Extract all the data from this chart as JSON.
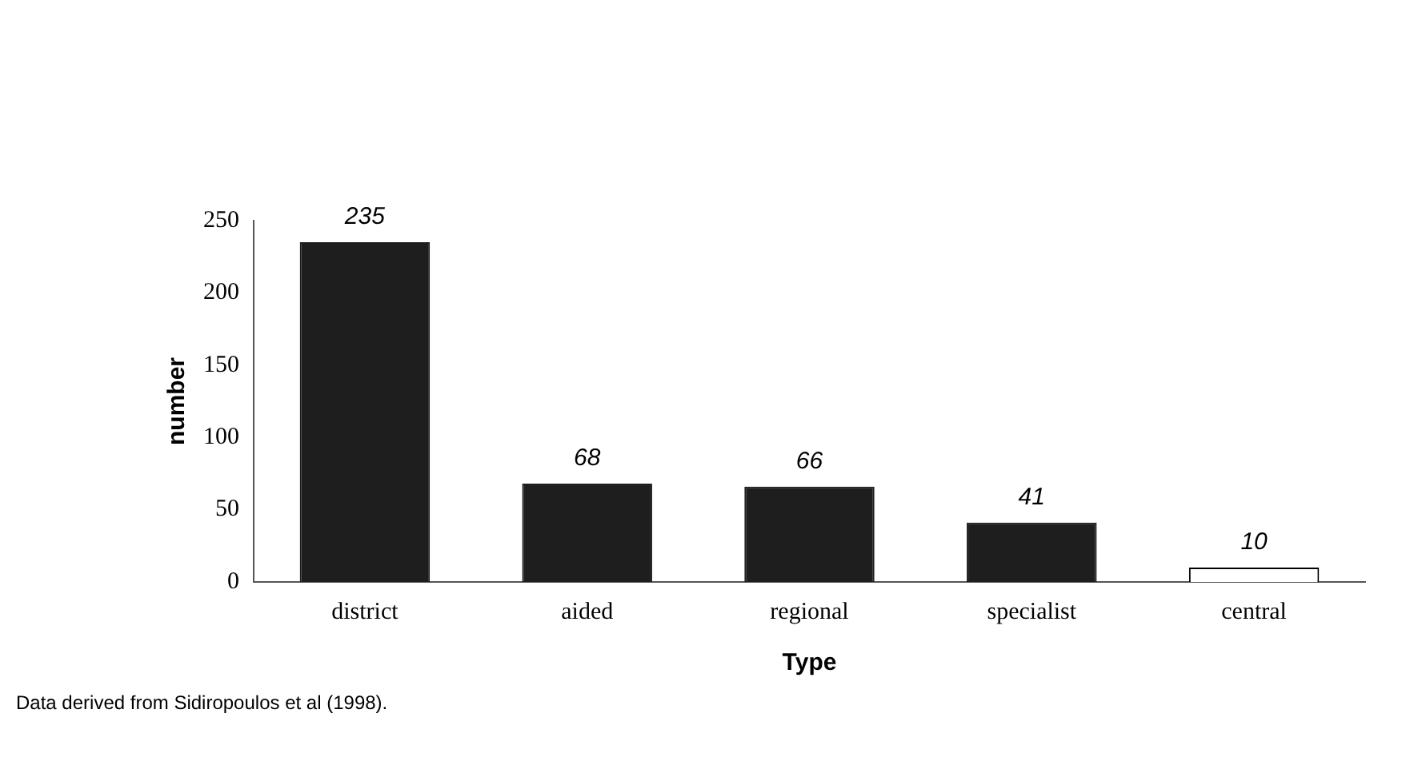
{
  "chart_data": {
    "type": "bar",
    "categories": [
      "district",
      "aided",
      "regional",
      "specialist",
      "central"
    ],
    "values": [
      235,
      68,
      66,
      41,
      10
    ],
    "colors": [
      "#1e1e1e",
      "#1e1e1e",
      "#1e1e1e",
      "#1e1e1e",
      "#ffffff"
    ],
    "xlabel": "Type",
    "ylabel": "number",
    "ylim": [
      0,
      250
    ],
    "yticks": [
      0,
      50,
      100,
      150,
      200,
      250
    ],
    "data_labels": true,
    "grid": false,
    "legend": false,
    "annotations": [
      "Data derived from Sidiropoulos et al (1998)."
    ]
  }
}
